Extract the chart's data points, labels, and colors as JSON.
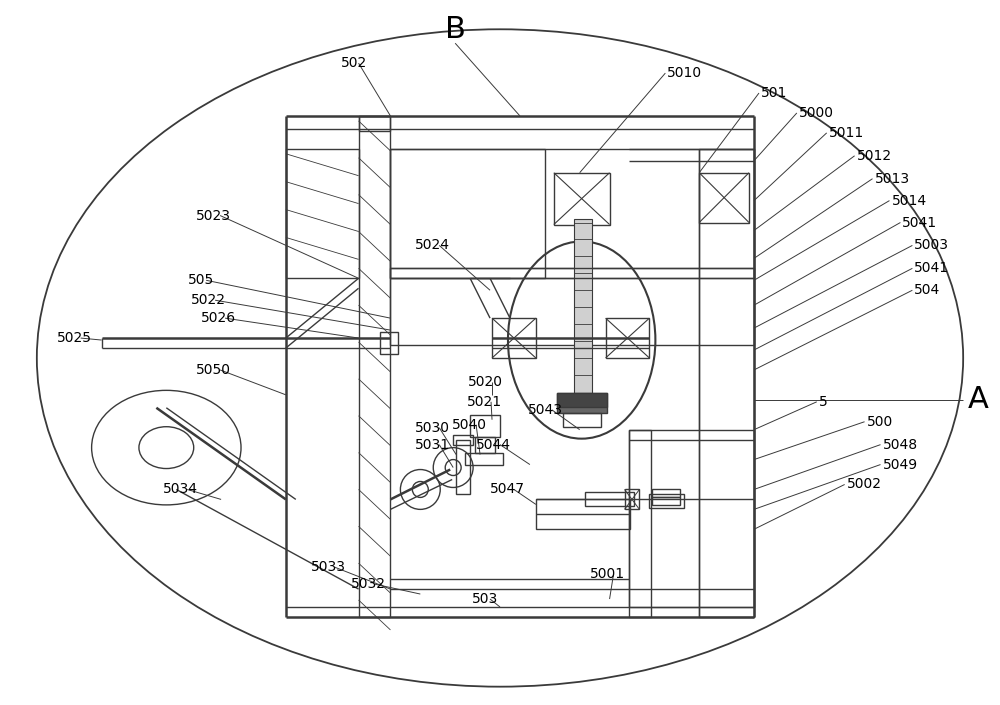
{
  "bg_color": "#ffffff",
  "lc": "#3a3a3a",
  "lw": 1.0,
  "tlw": 1.8,
  "fs": 10,
  "bfs": 22,
  "fig_w": 10.0,
  "fig_h": 7.05
}
